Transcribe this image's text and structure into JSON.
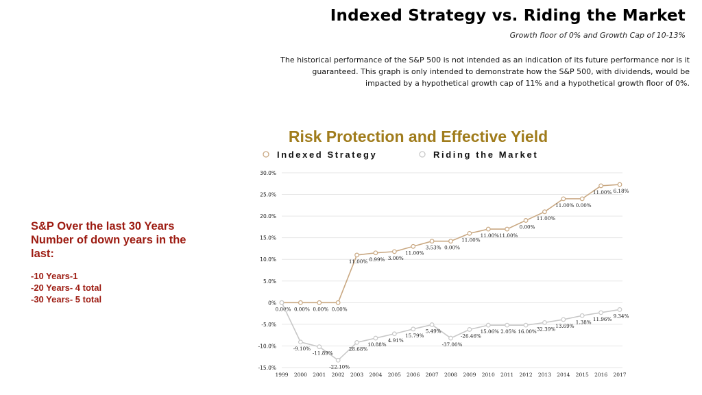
{
  "header": {
    "title": "Indexed Strategy vs. Riding the Market",
    "subtitle": "Growth floor of 0% and Growth Cap of 10-13%",
    "disclaimer": [
      "The historical performance of the S&P 500 is not intended as an indication of its future performance nor is it",
      "guaranteed. This graph is only intended to demonstrate how the S&P 500, with dividends, would be",
      "impacted by a hypothetical growth cap of 11% and a hypothetical growth floor of 0%."
    ]
  },
  "left_panel": {
    "heading": [
      "S&P Over the last 30 Years",
      "Number of down years in the",
      "last:"
    ],
    "items": [
      "-10 Years-1",
      "-20 Years- 4 total",
      "-30 Years- 5 total"
    ]
  },
  "chart_data": {
    "type": "line",
    "title": "Risk Protection and Effective Yield",
    "categories": [
      "1999",
      "2000",
      "2001",
      "2002",
      "2003",
      "2004",
      "2005",
      "2006",
      "2007",
      "2008",
      "2009",
      "2010",
      "2011",
      "2012",
      "2013",
      "2014",
      "2015",
      "2016",
      "2017"
    ],
    "ylim": [
      -15,
      30
    ],
    "yticks": [
      -15,
      -10,
      -5,
      0,
      5,
      10,
      15,
      20,
      25,
      30
    ],
    "ytick_labels": [
      "-15.0%",
      "-10.0%",
      "-5.0%",
      "0%",
      "5.0%",
      "10.0%",
      "15.0%",
      "20.0%",
      "25.0%",
      "30.0%"
    ],
    "grid": true,
    "legend_position": "top",
    "series": [
      {
        "name": "Indexed Strategy",
        "color": "#c9a882",
        "values": [
          0,
          0,
          0,
          0,
          11,
          11.5,
          11.8,
          13,
          14.2,
          14.2,
          16,
          17,
          17,
          19,
          21,
          24,
          24,
          27,
          27.3
        ],
        "labels": [
          "0.00%",
          "0.00%",
          "0.00%",
          "0.00%",
          "11.00%",
          "8.99%",
          "3.00%",
          "11.00%",
          "3.53%",
          "0.00%",
          "11.00%",
          "11.00%",
          "11.00%",
          "0.00%",
          "11.00%",
          "11.00%",
          "0.00%",
          "11.00%",
          "6.18%"
        ]
      },
      {
        "name": "Riding the Market",
        "color": "#c8c8c8",
        "values": [
          0,
          -9.1,
          -10.2,
          -13.3,
          -9.2,
          -8.2,
          -7.2,
          -6.1,
          -5.1,
          -8.2,
          -6.2,
          -5.2,
          -5.2,
          -5.2,
          -4.6,
          -3.9,
          -3.0,
          -2.3,
          -1.6
        ],
        "labels": [
          "",
          "-9.10%",
          "-11.89%",
          "-22.10%",
          "28.68%",
          "10.88%",
          "4.91%",
          "15.79%",
          "5.49%",
          "-37.00%",
          "-26.46%",
          "15.06%",
          "2.05%",
          "16.00%",
          "32.39%",
          "13.69%",
          "1.38%",
          "11.96%",
          "9.34%"
        ]
      }
    ]
  }
}
